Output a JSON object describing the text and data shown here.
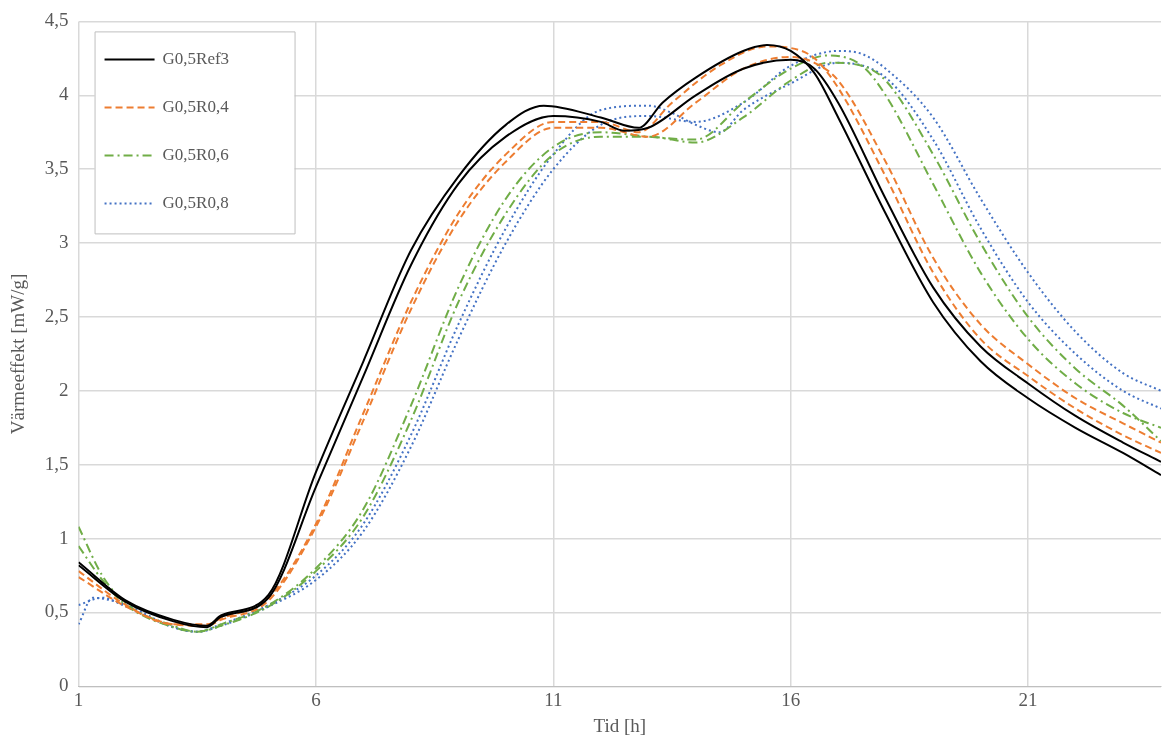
{
  "chart_data": {
    "type": "line",
    "xlabel": "Tid [h]",
    "ylabel": "Värmeeffekt [mW/g]",
    "xlim": [
      1,
      23.8
    ],
    "xticks": [
      1,
      6,
      11,
      16,
      21
    ],
    "ylim": [
      0,
      4.5
    ],
    "yticks": [
      0,
      {
        "value": 0.5,
        "label": "0,5"
      },
      1,
      {
        "value": 1.5,
        "label": "1,5"
      },
      2,
      {
        "value": 2.5,
        "label": "2,5"
      },
      3,
      {
        "value": 3.5,
        "label": "3,5"
      },
      4,
      {
        "value": 4.5,
        "label": "4,5"
      }
    ],
    "grid": true,
    "legend": "top left",
    "marker": "none",
    "series": [
      {
        "name": "G0,5Ref3",
        "color": "#000000",
        "line_style": "solid",
        "x": [
          1,
          2,
          3,
          3.7,
          4,
          5,
          6,
          7,
          8,
          9,
          10,
          10.8,
          12,
          12.8,
          13.3,
          14,
          15,
          15.5,
          16,
          16.5,
          17,
          18,
          19,
          20,
          21,
          22,
          23,
          23.8
        ],
        "values": [
          0.84,
          0.58,
          0.45,
          0.41,
          0.48,
          0.62,
          1.45,
          2.2,
          2.95,
          3.45,
          3.8,
          3.93,
          3.85,
          3.78,
          3.95,
          4.12,
          4.3,
          4.34,
          4.3,
          4.15,
          3.85,
          3.2,
          2.6,
          2.2,
          1.95,
          1.75,
          1.58,
          1.43
        ]
      },
      {
        "color": "#000000",
        "line_style": "solid",
        "x": [
          1,
          2,
          3,
          3.7,
          4,
          5,
          6,
          7,
          8,
          9,
          10,
          11,
          12,
          12.5,
          13,
          14,
          15,
          16,
          16.5,
          17,
          18,
          19,
          20,
          21,
          22,
          23,
          23.8
        ],
        "values": [
          0.82,
          0.57,
          0.44,
          0.4,
          0.47,
          0.6,
          1.35,
          2.1,
          2.85,
          3.4,
          3.72,
          3.86,
          3.82,
          3.76,
          3.78,
          4.0,
          4.18,
          4.24,
          4.18,
          3.95,
          3.3,
          2.7,
          2.3,
          2.05,
          1.83,
          1.65,
          1.52
        ]
      },
      {
        "name": "G0,5R0,4",
        "color": "#ed7d31",
        "line_style": "dashed",
        "x": [
          1,
          2,
          3,
          3.7,
          4,
          5,
          6,
          7,
          8,
          9,
          10,
          11,
          12,
          12.8,
          13.5,
          14.5,
          15.5,
          16,
          16.5,
          17,
          18,
          19,
          20,
          21,
          22,
          23,
          23.8
        ],
        "values": [
          0.78,
          0.55,
          0.42,
          0.42,
          0.46,
          0.6,
          1.1,
          1.85,
          2.6,
          3.2,
          3.6,
          3.82,
          3.82,
          3.75,
          3.95,
          4.2,
          4.33,
          4.32,
          4.25,
          4.05,
          3.45,
          2.8,
          2.35,
          2.1,
          1.88,
          1.7,
          1.58
        ]
      },
      {
        "color": "#ed7d31",
        "line_style": "dashed",
        "x": [
          1,
          2,
          3,
          3.7,
          4,
          5,
          6,
          7,
          8,
          9,
          10,
          11,
          12,
          13,
          14,
          15,
          16,
          16.5,
          17,
          18,
          19,
          20,
          21,
          22,
          23,
          23.8
        ],
        "values": [
          0.74,
          0.54,
          0.42,
          0.41,
          0.45,
          0.58,
          1.08,
          1.8,
          2.55,
          3.15,
          3.55,
          3.78,
          3.78,
          3.72,
          3.95,
          4.18,
          4.26,
          4.22,
          4.1,
          3.55,
          2.9,
          2.45,
          2.18,
          1.95,
          1.78,
          1.65
        ]
      },
      {
        "name": "G0,5R0,6",
        "color": "#70ad47",
        "line_style": "dashdot",
        "x": [
          1,
          1.5,
          2,
          3,
          3.5,
          4,
          5,
          6,
          7,
          8,
          9,
          10,
          11,
          12,
          13,
          14,
          15,
          16,
          16.8,
          17.5,
          18,
          19,
          20,
          21,
          22,
          23,
          23.8
        ],
        "values": [
          1.08,
          0.75,
          0.56,
          0.41,
          0.37,
          0.42,
          0.55,
          0.8,
          1.2,
          1.9,
          2.7,
          3.3,
          3.65,
          3.75,
          3.72,
          3.7,
          3.95,
          4.18,
          4.27,
          4.2,
          4.0,
          3.4,
          2.8,
          2.35,
          2.05,
          1.85,
          1.75
        ]
      },
      {
        "color": "#70ad47",
        "line_style": "dashdot",
        "x": [
          1,
          1.5,
          2,
          3,
          3.5,
          4,
          5,
          6,
          7,
          8,
          9,
          10,
          11,
          12,
          13,
          14,
          15,
          16,
          16.8,
          17.5,
          18,
          19,
          20,
          21,
          22,
          23,
          23.8
        ],
        "values": [
          0.95,
          0.72,
          0.55,
          0.4,
          0.37,
          0.41,
          0.54,
          0.78,
          1.15,
          1.8,
          2.6,
          3.2,
          3.6,
          3.72,
          3.72,
          3.68,
          3.85,
          4.1,
          4.22,
          4.2,
          4.1,
          3.6,
          3.0,
          2.5,
          2.15,
          1.9,
          1.66
        ]
      },
      {
        "name": "G0,5R0,8",
        "color": "#4472c4",
        "line_style": "dotted",
        "x": [
          1,
          1.3,
          2,
          3,
          3.5,
          4,
          5,
          6,
          7,
          8,
          9,
          10,
          11,
          12,
          13,
          13.5,
          14,
          14.5,
          15,
          16,
          17,
          18,
          19,
          20,
          21,
          22,
          23,
          23.8
        ],
        "values": [
          0.42,
          0.6,
          0.55,
          0.4,
          0.37,
          0.42,
          0.55,
          0.75,
          1.1,
          1.7,
          2.45,
          3.1,
          3.6,
          3.9,
          3.93,
          3.88,
          3.8,
          3.75,
          3.9,
          4.08,
          4.22,
          4.12,
          3.7,
          3.1,
          2.6,
          2.25,
          2.0,
          1.88
        ]
      },
      {
        "color": "#4472c4",
        "line_style": "dotted",
        "x": [
          1,
          1.5,
          2,
          3,
          3.5,
          4,
          5,
          6,
          7,
          8,
          9,
          10,
          11,
          12,
          13,
          14,
          15,
          16,
          17,
          17.5,
          18,
          19,
          20,
          21,
          22,
          23,
          23.8
        ],
        "values": [
          0.55,
          0.6,
          0.54,
          0.4,
          0.37,
          0.41,
          0.54,
          0.72,
          1.05,
          1.62,
          2.35,
          3.0,
          3.5,
          3.8,
          3.86,
          3.82,
          3.95,
          4.2,
          4.3,
          4.28,
          4.18,
          3.85,
          3.3,
          2.8,
          2.4,
          2.12,
          2.0
        ]
      }
    ]
  }
}
